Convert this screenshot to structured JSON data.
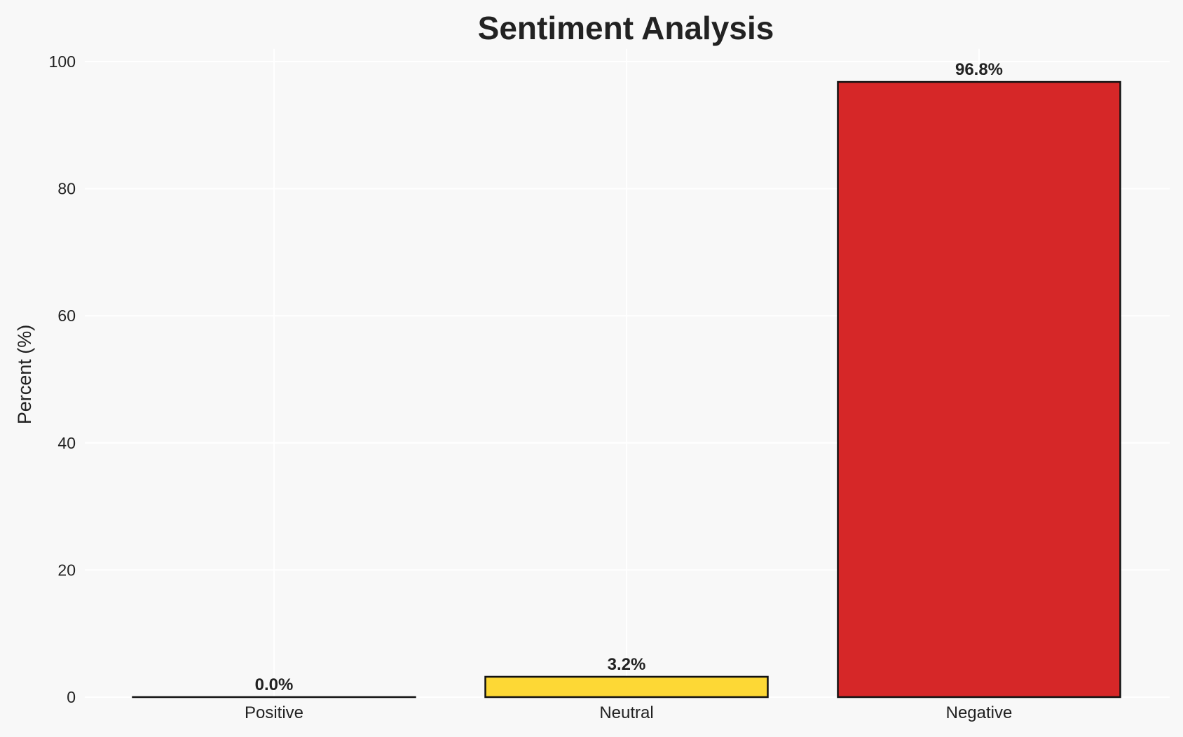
{
  "chart_data": {
    "type": "bar",
    "title": "Sentiment Analysis",
    "xlabel": "",
    "ylabel": "Percent (%)",
    "categories": [
      "Positive",
      "Neutral",
      "Negative"
    ],
    "values": [
      0.0,
      3.2,
      96.8
    ],
    "data_labels": [
      "0.0%",
      "3.2%",
      "96.8%"
    ],
    "colors": [
      "#2ca02c",
      "#fdd835",
      "#d62728"
    ],
    "edge_color": "#111111",
    "ylim": [
      0,
      102
    ],
    "yticks": [
      0,
      20,
      40,
      60,
      80,
      100
    ],
    "grid": true,
    "background": "#f8f8f8"
  }
}
